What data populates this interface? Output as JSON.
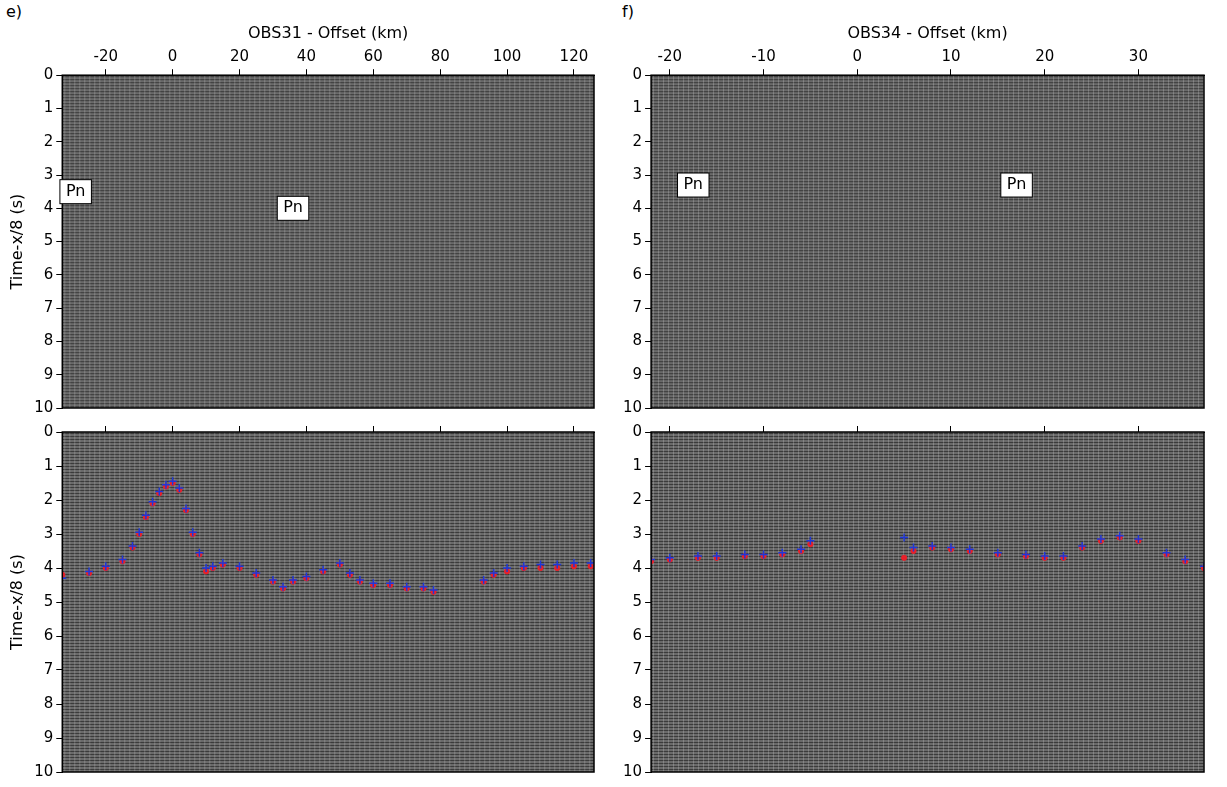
{
  "chart_data": [
    {
      "type": "scatter",
      "panel": "e)",
      "x_label": "OBS31 - Offset (km)",
      "y_label": "Time-x/8 (s)",
      "xlim": [
        -33,
        126
      ],
      "xticks": [
        -20,
        0,
        20,
        40,
        60,
        80,
        100,
        120
      ],
      "ylim": [
        10,
        0
      ],
      "yticks": [
        0,
        1,
        2,
        3,
        4,
        5,
        6,
        7,
        8,
        9,
        10
      ],
      "grid": false,
      "annotations": [
        {
          "text": "Pn",
          "x": -29,
          "y": 3.5
        },
        {
          "text": "Pn",
          "x": 36,
          "y": 4.0
        }
      ],
      "x": [],
      "series": []
    },
    {
      "type": "scatter",
      "y_label": "Time-x/8 (s)",
      "xlim": [
        -33,
        126
      ],
      "xticks": [
        -20,
        0,
        20,
        40,
        60,
        80,
        100,
        120
      ],
      "ylim": [
        10,
        0
      ],
      "yticks": [
        0,
        1,
        2,
        3,
        4,
        5,
        6,
        7,
        8,
        9,
        10
      ],
      "grid": false,
      "tick_labels": "y",
      "x": [
        -33,
        -25,
        -20,
        -15,
        -12,
        -10,
        -8,
        -6,
        -4,
        -2,
        0,
        2,
        4,
        6,
        8,
        10,
        12,
        15,
        20,
        25,
        30,
        33,
        36,
        40,
        45,
        50,
        53,
        56,
        60,
        65,
        70,
        75,
        78,
        85,
        93,
        96,
        100,
        105,
        110,
        115,
        120,
        125
      ],
      "series": [
        {
          "color": "#2038d8",
          "marker": "cross",
          "values": [
            4.3,
            4.1,
            3.95,
            3.75,
            3.35,
            2.95,
            2.45,
            2.05,
            1.75,
            1.55,
            1.45,
            1.65,
            2.25,
            2.95,
            3.55,
            4.0,
            3.95,
            3.85,
            3.95,
            4.15,
            4.35,
            4.55,
            4.35,
            4.25,
            4.05,
            3.85,
            4.15,
            4.35,
            4.45,
            4.45,
            4.55,
            4.55,
            4.65,
            null,
            4.35,
            4.15,
            4.0,
            3.95,
            3.9,
            3.9,
            3.85,
            3.85
          ]
        },
        {
          "color": "#e8202a",
          "marker": "circle",
          "values": [
            4.2,
            4.15,
            4.0,
            3.8,
            3.4,
            3.0,
            2.5,
            2.1,
            1.8,
            1.6,
            1.5,
            1.7,
            2.3,
            3.0,
            3.6,
            4.1,
            4.0,
            3.9,
            4.0,
            4.2,
            4.4,
            4.6,
            4.4,
            4.3,
            4.1,
            3.9,
            4.2,
            4.4,
            4.5,
            4.5,
            4.6,
            4.6,
            4.7,
            null,
            4.4,
            4.2,
            4.1,
            4.0,
            4.0,
            4.0,
            3.95,
            3.95
          ]
        }
      ]
    },
    {
      "type": "scatter",
      "panel": "f)",
      "x_label": "OBS34 - Offset (km)",
      "xlim": [
        -22,
        37
      ],
      "xticks": [
        -20,
        -10,
        0,
        10,
        20,
        30
      ],
      "ylim": [
        10,
        0
      ],
      "yticks": [
        0,
        1,
        2,
        3,
        4,
        5,
        6,
        7,
        8,
        9,
        10
      ],
      "grid": false,
      "annotations": [
        {
          "text": "Pn",
          "x": -17.5,
          "y": 3.3
        },
        {
          "text": "Pn",
          "x": 17,
          "y": 3.3
        }
      ],
      "x": [],
      "series": []
    },
    {
      "type": "scatter",
      "xlim": [
        -22,
        37
      ],
      "xticks": [
        -20,
        -10,
        0,
        10,
        20,
        30
      ],
      "ylim": [
        10,
        0
      ],
      "yticks": [
        0,
        1,
        2,
        3,
        4,
        5,
        6,
        7,
        8,
        9,
        10
      ],
      "grid": false,
      "tick_labels": "y",
      "x": [
        -22,
        -20,
        -17,
        -15,
        -12,
        -10,
        -8,
        -6,
        -5,
        0,
        5,
        6,
        8,
        10,
        12,
        15,
        18,
        20,
        22,
        24,
        26,
        28,
        30,
        33,
        35,
        37
      ],
      "series": [
        {
          "color": "#2038d8",
          "marker": "cross",
          "values": [
            3.75,
            3.7,
            3.65,
            3.65,
            3.6,
            3.6,
            3.55,
            3.45,
            3.2,
            null,
            3.1,
            3.4,
            3.35,
            3.4,
            3.45,
            3.55,
            3.6,
            3.65,
            3.65,
            3.35,
            3.15,
            3.05,
            3.15,
            3.55,
            3.75,
            3.95
          ]
        },
        {
          "color": "#e8202a",
          "marker": "circle",
          "values": [
            3.8,
            3.75,
            3.7,
            3.7,
            3.65,
            3.65,
            3.6,
            3.5,
            3.3,
            null,
            3.7,
            3.5,
            3.4,
            3.45,
            3.5,
            3.6,
            3.65,
            3.7,
            3.7,
            3.4,
            3.2,
            3.1,
            3.2,
            3.6,
            3.8,
            4.0
          ]
        }
      ]
    }
  ]
}
